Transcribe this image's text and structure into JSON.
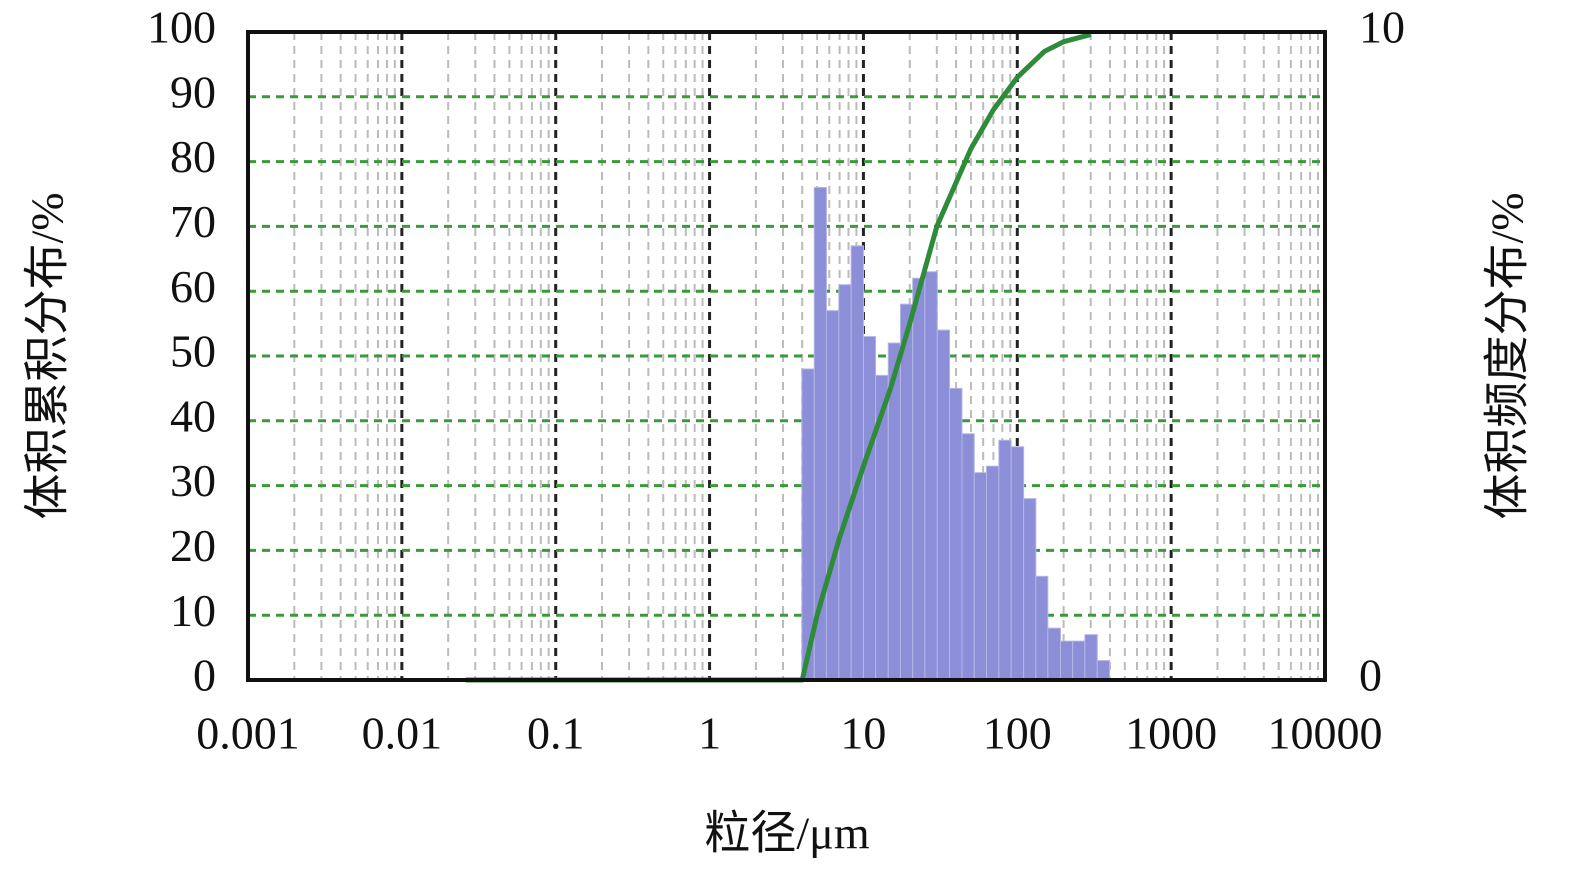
{
  "chart_data": {
    "type": "histogram",
    "x_label": "粒径/μm",
    "y_label": "体积累积分布/%",
    "y2_label": "体积频度分布/%",
    "xscale": "log",
    "xlim": [
      0.001,
      10000
    ],
    "xticks": [
      0.001,
      0.01,
      0.1,
      1,
      10,
      100,
      1000,
      10000
    ],
    "ylim": [
      0,
      100
    ],
    "yticks": [
      0,
      10,
      20,
      30,
      40,
      50,
      60,
      70,
      80,
      90,
      100
    ],
    "y2lim": [
      0,
      10
    ],
    "y2ticks": [
      0,
      10
    ],
    "grid": true,
    "minor_grid": true,
    "histogram": {
      "axis": "y2",
      "color": "#8c8fd8",
      "bins": [
        3.98,
        4.79,
        5.75,
        6.92,
        8.32,
        10,
        12.0,
        14.5,
        17.4,
        20.9,
        25.1,
        30.2,
        36.3,
        43.7,
        52.5,
        63.1,
        75.9,
        91.2,
        110,
        132,
        158,
        191,
        229,
        275,
        331,
        398
      ],
      "counts": [
        4.8,
        7.6,
        5.7,
        6.1,
        6.7,
        5.3,
        4.7,
        5.2,
        5.8,
        6.2,
        6.3,
        5.4,
        4.5,
        3.8,
        3.2,
        3.3,
        3.7,
        3.6,
        2.8,
        1.6,
        0.8,
        0.6,
        0.6,
        0.7,
        0.3
      ]
    },
    "series": [
      {
        "type": "line",
        "color": "#2e8b3a",
        "x": [
          0.026,
          4,
          5,
          7,
          10,
          15,
          20,
          30,
          50,
          70,
          100,
          150,
          200,
          300
        ],
        "values": [
          0,
          0,
          10,
          22,
          33,
          45,
          55,
          70,
          82,
          88,
          93,
          97,
          98.5,
          99.6
        ]
      }
    ]
  }
}
